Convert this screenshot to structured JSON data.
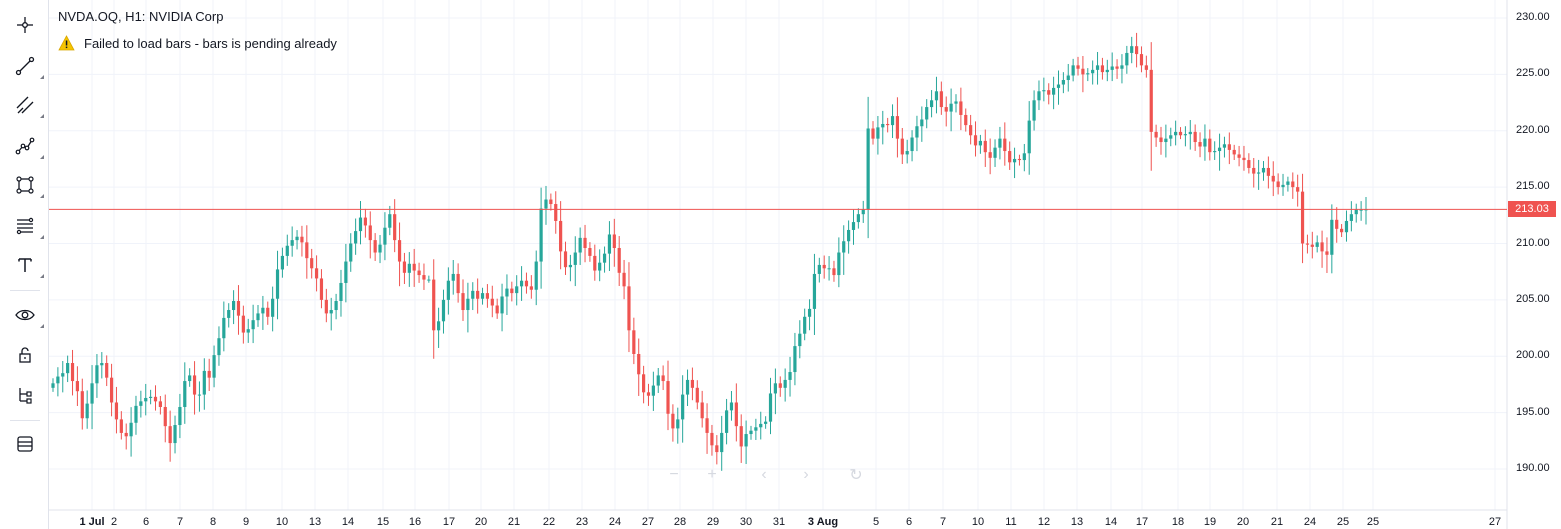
{
  "chart_title": "NVDA.OQ, H1: NVIDIA Corp",
  "status_message": "Failed to load bars - bars is pending already",
  "current_price_label": "213.03",
  "colors": {
    "up": "#26a69a",
    "down": "#ef5350",
    "price_line": "#ef5350",
    "grid": "#f0f3fa",
    "text": "#131722"
  },
  "toolbar": [
    {
      "name": "crosshair-icon"
    },
    {
      "name": "trend-line-icon"
    },
    {
      "name": "parallel-channel-icon"
    },
    {
      "name": "polyline-icon"
    },
    {
      "name": "rectangle-icon"
    },
    {
      "name": "fib-retracement-icon"
    },
    {
      "name": "text-icon"
    },
    {
      "name": "eye-icon"
    },
    {
      "name": "unlock-icon"
    },
    {
      "name": "object-tree-icon"
    },
    {
      "name": "layers-icon"
    }
  ],
  "chart_data": {
    "type": "candlestick",
    "symbol": "NVDA.OQ",
    "interval": "H1",
    "current_price": 213.03,
    "y_ticks": [
      "230.00",
      "225.00",
      "220.00",
      "215.00",
      "210.00",
      "205.00",
      "200.00",
      "195.00",
      "190.00"
    ],
    "y_tick_values": [
      230,
      225,
      220,
      215,
      210,
      205,
      200,
      195,
      190
    ],
    "ylim": [
      188.2,
      231.2
    ],
    "x_ticks": [
      {
        "label": "1 Jul",
        "bold": true
      },
      {
        "label": "2"
      },
      {
        "label": "6"
      },
      {
        "label": "7"
      },
      {
        "label": "8"
      },
      {
        "label": "9"
      },
      {
        "label": "10"
      },
      {
        "label": "13"
      },
      {
        "label": "14"
      },
      {
        "label": "15"
      },
      {
        "label": "16"
      },
      {
        "label": "17"
      },
      {
        "label": "20"
      },
      {
        "label": "21"
      },
      {
        "label": "22"
      },
      {
        "label": "23"
      },
      {
        "label": "24"
      },
      {
        "label": "27"
      },
      {
        "label": "28"
      },
      {
        "label": "29"
      },
      {
        "label": "30"
      },
      {
        "label": "31"
      },
      {
        "label": "3 Aug",
        "bold": true
      },
      {
        "label": "5"
      },
      {
        "label": "6"
      },
      {
        "label": "7"
      },
      {
        "label": "10"
      },
      {
        "label": "11"
      },
      {
        "label": "12"
      },
      {
        "label": "13"
      },
      {
        "label": "14"
      },
      {
        "label": "17"
      },
      {
        "label": "18"
      },
      {
        "label": "19"
      },
      {
        "label": "20"
      },
      {
        "label": "21"
      },
      {
        "label": "24"
      },
      {
        "label": "25"
      },
      {
        "label": "25"
      },
      {
        "label": "27"
      }
    ],
    "closes": [
      197.6,
      198.2,
      198.5,
      199.4,
      197.8,
      196.9,
      194.5,
      195.8,
      197.6,
      199.2,
      199.4,
      198.1,
      195.9,
      194.4,
      193.2,
      192.9,
      194.1,
      195.6,
      196.0,
      196.3,
      196.4,
      196.0,
      195.5,
      193.8,
      192.3,
      193.9,
      195.5,
      197.8,
      198.3,
      196.6,
      196.6,
      198.7,
      198.1,
      200.1,
      201.6,
      203.4,
      204.1,
      204.9,
      203.6,
      202.1,
      202.4,
      203.2,
      203.8,
      204.3,
      203.5,
      205.1,
      207.7,
      208.9,
      209.8,
      210.3,
      210.6,
      210.1,
      208.7,
      207.8,
      206.9,
      205.0,
      203.8,
      204.1,
      204.9,
      206.5,
      208.4,
      210.0,
      211.1,
      212.3,
      211.6,
      210.3,
      209.2,
      209.9,
      211.4,
      212.6,
      210.3,
      208.4,
      207.4,
      208.2,
      207.6,
      207.2,
      206.8,
      206.8,
      202.3,
      203.1,
      205.0,
      206.7,
      207.3,
      205.6,
      204.1,
      205.1,
      205.8,
      205.1,
      205.6,
      205.1,
      204.5,
      203.8,
      205.3,
      206.0,
      205.6,
      206.2,
      206.7,
      206.2,
      205.9,
      208.4,
      213.1,
      213.9,
      213.5,
      212.0,
      209.3,
      207.9,
      208.1,
      209.2,
      210.5,
      209.6,
      208.9,
      207.6,
      208.3,
      209.1,
      210.8,
      209.6,
      207.4,
      206.2,
      202.3,
      200.2,
      198.4,
      196.8,
      196.5,
      197.4,
      198.3,
      197.8,
      194.9,
      193.6,
      194.4,
      196.6,
      197.9,
      197.2,
      195.9,
      194.5,
      193.2,
      192.1,
      191.5,
      193.2,
      195.2,
      195.9,
      193.8,
      192.0,
      193.1,
      193.4,
      193.7,
      194.0,
      194.2,
      196.7,
      197.6,
      197.2,
      197.9,
      198.6,
      200.9,
      202.0,
      203.5,
      204.2,
      207.3,
      208.1,
      207.8,
      207.8,
      207.2,
      209.2,
      210.2,
      211.2,
      211.9,
      212.6,
      213.0,
      220.2,
      219.3,
      220.3,
      220.6,
      220.5,
      221.3,
      219.3,
      217.9,
      218.2,
      219.4,
      220.4,
      221.0,
      222.1,
      222.7,
      223.5,
      222.1,
      221.7,
      222.4,
      222.6,
      221.4,
      220.5,
      219.6,
      218.7,
      219.1,
      218.1,
      217.6,
      218.5,
      219.3,
      218.2,
      217.2,
      217.5,
      217.4,
      218.0,
      220.9,
      222.7,
      223.5,
      223.6,
      223.2,
      223.8,
      224.1,
      224.5,
      224.9,
      225.8,
      225.5,
      225.0,
      225.1,
      225.4,
      225.8,
      225.2,
      225.4,
      225.7,
      225.5,
      225.8,
      226.9,
      227.5,
      226.8,
      225.8,
      225.4,
      219.9,
      219.4,
      219.0,
      219.3,
      219.6,
      219.9,
      219.6,
      219.7,
      219.9,
      219.0,
      218.6,
      219.3,
      218.1,
      218.2,
      218.5,
      218.8,
      218.3,
      217.9,
      217.6,
      217.4,
      216.7,
      216.2,
      216.3,
      216.7,
      216.0,
      215.5,
      215.0,
      215.2,
      215.5,
      215.0,
      214.6,
      210.0,
      209.9,
      209.7,
      210.1,
      209.3,
      209.0,
      212.1,
      211.3,
      211.0,
      212.0,
      212.6,
      213.0,
      213.0,
      213.03
    ]
  }
}
